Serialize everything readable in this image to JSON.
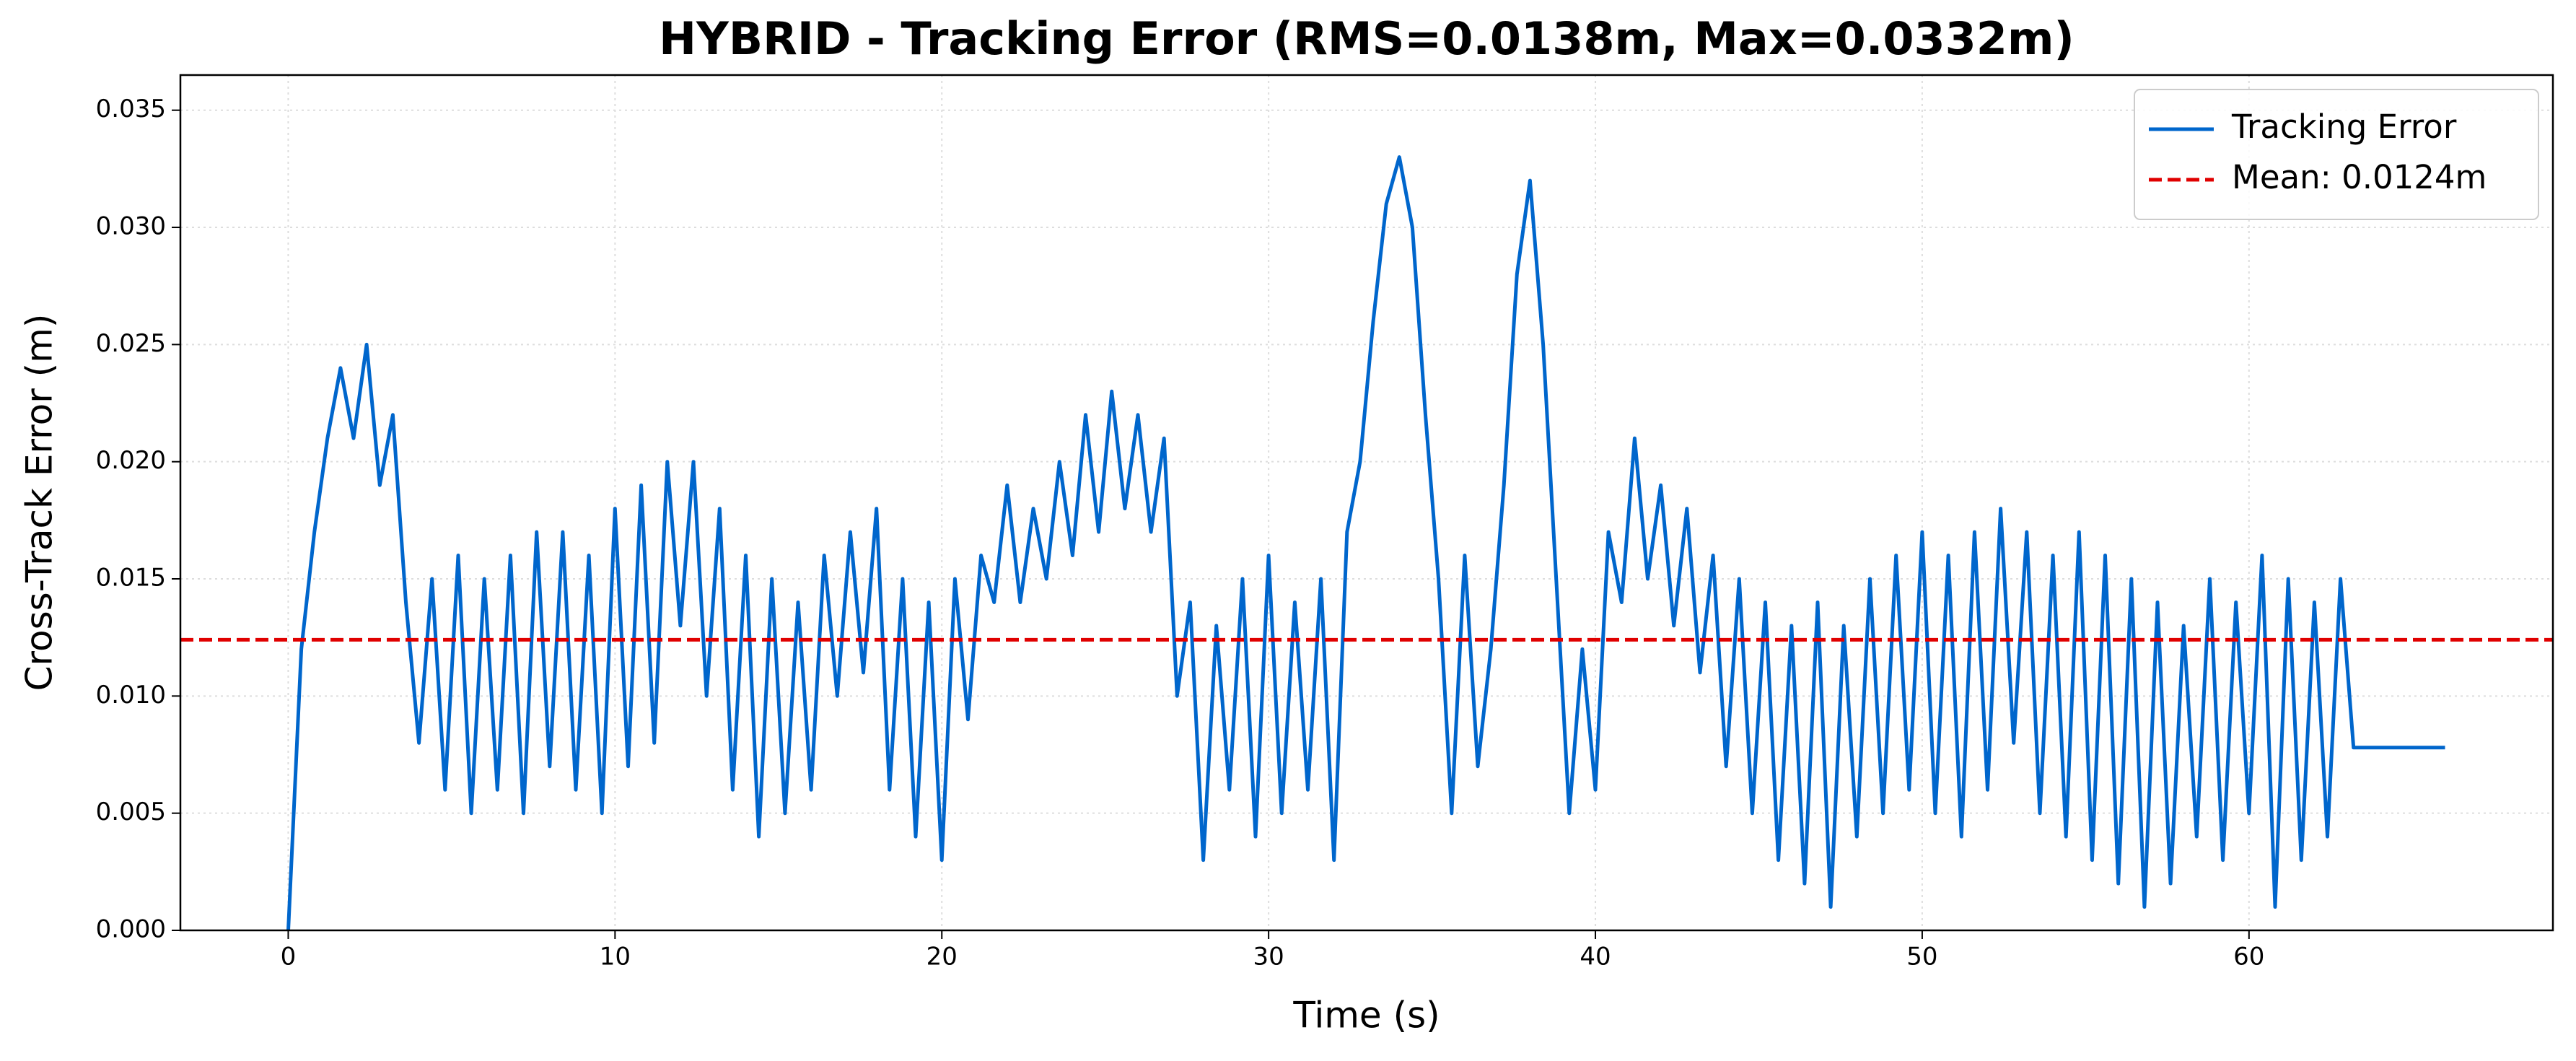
{
  "chart_data": {
    "type": "line",
    "title": "HYBRID - Tracking Error (RMS=0.0138m, Max=0.0332m)",
    "xlabel": "Time (s)",
    "ylabel": "Cross-Track Error (m)",
    "xlim": [
      -3.3,
      69.3
    ],
    "ylim": [
      0,
      0.0365
    ],
    "xticks": [
      0,
      10,
      20,
      30,
      40,
      50,
      60
    ],
    "yticks": [
      {
        "value": 0,
        "label": "0.000"
      },
      {
        "value": 0.005,
        "label": "0.005"
      },
      {
        "value": 0.01,
        "label": "0.010"
      },
      {
        "value": 0.015,
        "label": "0.015"
      },
      {
        "value": 0.02,
        "label": "0.020"
      },
      {
        "value": 0.025,
        "label": "0.025"
      },
      {
        "value": 0.03,
        "label": "0.030"
      },
      {
        "value": 0.035,
        "label": "0.035"
      }
    ],
    "grid": true,
    "legend": "upper right",
    "x": [
      0,
      0.4,
      0.8,
      1.2,
      1.6,
      2,
      2.4,
      2.8,
      3.2,
      3.6,
      4,
      4.4,
      4.8,
      5.2,
      5.6,
      6,
      6.4,
      6.8,
      7.2,
      7.6,
      8,
      8.4,
      8.8,
      9.2,
      9.6,
      10,
      10.4,
      10.8,
      11.2,
      11.6,
      12,
      12.4,
      12.8,
      13.2,
      13.6,
      14,
      14.4,
      14.8,
      15.2,
      15.6,
      16,
      16.4,
      16.8,
      17.2,
      17.6,
      18,
      18.4,
      18.8,
      19.2,
      19.6,
      20,
      20.4,
      20.8,
      21.2,
      21.6,
      22,
      22.4,
      22.8,
      23.2,
      23.6,
      24,
      24.4,
      24.8,
      25.2,
      25.6,
      26,
      26.4,
      26.8,
      27.2,
      27.6,
      28,
      28.4,
      28.8,
      29.2,
      29.6,
      30,
      30.4,
      30.8,
      31.2,
      31.6,
      32,
      32.4,
      32.8,
      33.2,
      33.6,
      34,
      34.4,
      34.8,
      35.2,
      35.6,
      36,
      36.4,
      36.8,
      37.2,
      37.6,
      38,
      38.4,
      38.8,
      39.2,
      39.6,
      40,
      40.4,
      40.8,
      41.2,
      41.6,
      42,
      42.4,
      42.8,
      43.2,
      43.6,
      44,
      44.4,
      44.8,
      45.2,
      45.6,
      46,
      46.4,
      46.8,
      47.2,
      47.6,
      48,
      48.4,
      48.8,
      49.2,
      49.6,
      50,
      50.4,
      50.8,
      51.2,
      51.6,
      52,
      52.4,
      52.8,
      53.2,
      53.6,
      54,
      54.4,
      54.8,
      55.2,
      55.6,
      56,
      56.4,
      56.8,
      57.2,
      57.6,
      58,
      58.4,
      58.8,
      59.2,
      59.6,
      60,
      60.4,
      60.8,
      61.2,
      61.6,
      62,
      62.4,
      62.8,
      63.2,
      66
    ],
    "series": [
      {
        "name": "Tracking Error",
        "color": "#0066cc",
        "values": [
          0,
          0.012,
          0.017,
          0.021,
          0.024,
          0.021,
          0.025,
          0.019,
          0.022,
          0.014,
          0.008,
          0.015,
          0.006,
          0.016,
          0.005,
          0.015,
          0.006,
          0.016,
          0.005,
          0.017,
          0.007,
          0.017,
          0.006,
          0.016,
          0.005,
          0.018,
          0.007,
          0.019,
          0.008,
          0.02,
          0.013,
          0.02,
          0.01,
          0.018,
          0.006,
          0.016,
          0.004,
          0.015,
          0.005,
          0.014,
          0.006,
          0.016,
          0.01,
          0.017,
          0.011,
          0.018,
          0.006,
          0.015,
          0.004,
          0.014,
          0.003,
          0.015,
          0.009,
          0.016,
          0.014,
          0.019,
          0.014,
          0.018,
          0.015,
          0.02,
          0.016,
          0.022,
          0.017,
          0.023,
          0.018,
          0.022,
          0.017,
          0.021,
          0.01,
          0.014,
          0.003,
          0.013,
          0.006,
          0.015,
          0.004,
          0.016,
          0.005,
          0.014,
          0.006,
          0.015,
          0.003,
          0.017,
          0.02,
          0.026,
          0.031,
          0.033,
          0.03,
          0.022,
          0.015,
          0.005,
          0.016,
          0.007,
          0.012,
          0.019,
          0.028,
          0.032,
          0.025,
          0.015,
          0.005,
          0.012,
          0.006,
          0.017,
          0.014,
          0.021,
          0.015,
          0.019,
          0.013,
          0.018,
          0.011,
          0.016,
          0.007,
          0.015,
          0.005,
          0.014,
          0.003,
          0.013,
          0.002,
          0.014,
          0.001,
          0.013,
          0.004,
          0.015,
          0.005,
          0.016,
          0.006,
          0.017,
          0.005,
          0.016,
          0.004,
          0.017,
          0.006,
          0.018,
          0.008,
          0.017,
          0.005,
          0.016,
          0.004,
          0.017,
          0.003,
          0.016,
          0.002,
          0.015,
          0.001,
          0.014,
          0.002,
          0.013,
          0.004,
          0.015,
          0.003,
          0.014,
          0.005,
          0.016,
          0.001,
          0.015,
          0.003,
          0.014,
          0.004,
          0.015,
          0.0078,
          0.0078
        ]
      }
    ],
    "mean_line": {
      "name": "Mean: 0.0124m",
      "value": 0.0124,
      "color": "#e00000"
    }
  }
}
